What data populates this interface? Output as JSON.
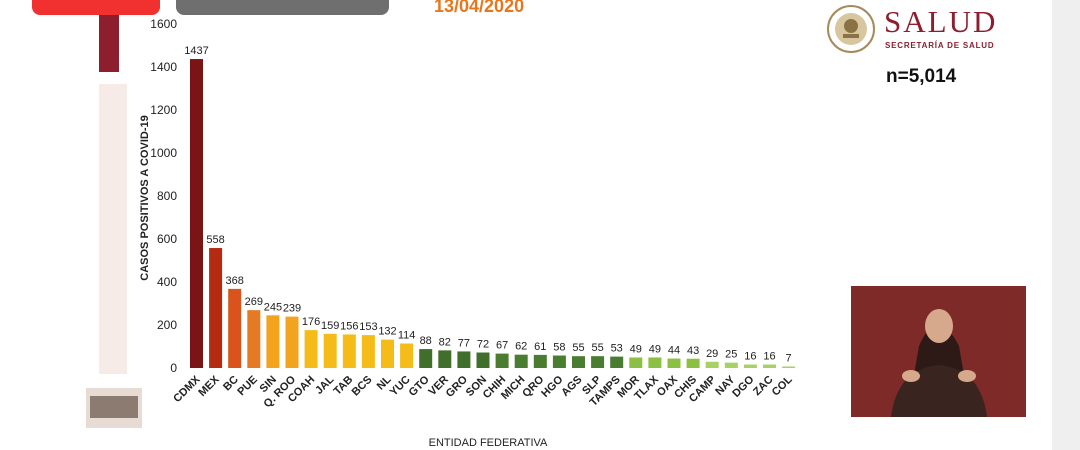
{
  "header": {
    "date": "13/04/2020",
    "brand": "SALUD",
    "brand_sub": "SECRETARÍA DE SALUD",
    "sample_size": "n=5,014"
  },
  "chart_data": {
    "type": "bar",
    "title": "",
    "xlabel": "ENTIDAD FEDERATIVA",
    "ylabel": "CASOS POSITIVOS A COVID-19",
    "ylim": [
      0,
      1600
    ],
    "yticks": [
      0,
      200,
      400,
      600,
      800,
      1000,
      1200,
      1400,
      1600
    ],
    "grid": false,
    "categories": [
      "CDMX",
      "MEX",
      "BC",
      "PUE",
      "SIN",
      "Q. ROO",
      "COAH",
      "JAL",
      "TAB",
      "BCS",
      "NL",
      "YUC",
      "GTO",
      "VER",
      "GRO",
      "SON",
      "CHIH",
      "MICH",
      "QRO",
      "HGO",
      "AGS",
      "SLP",
      "TAMPS",
      "MOR",
      "TLAX",
      "OAX",
      "CHIS",
      "CAMP",
      "NAY",
      "DGO",
      "ZAC",
      "COL"
    ],
    "values": [
      1437,
      558,
      368,
      269,
      245,
      239,
      176,
      159,
      156,
      153,
      132,
      114,
      88,
      82,
      77,
      72,
      67,
      62,
      61,
      58,
      55,
      55,
      53,
      49,
      49,
      44,
      43,
      29,
      25,
      16,
      16,
      7
    ],
    "colors": [
      "#7b1414",
      "#b52b12",
      "#d9531c",
      "#e57a24",
      "#f2a41f",
      "#f2a41f",
      "#f5bb18",
      "#f5bb18",
      "#f5bb18",
      "#f5bb18",
      "#f5bb18",
      "#f5bb18",
      "#3f6f2a",
      "#3f6f2a",
      "#3f6f2a",
      "#3f6f2a",
      "#4a7d30",
      "#4a7d30",
      "#4a7d30",
      "#4a7d30",
      "#4a7d30",
      "#4a7d30",
      "#4a7d30",
      "#8cc043",
      "#8cc043",
      "#8cc043",
      "#8cc043",
      "#a8d165",
      "#a8d165",
      "#a8d165",
      "#a8d165",
      "#a8d165"
    ]
  }
}
